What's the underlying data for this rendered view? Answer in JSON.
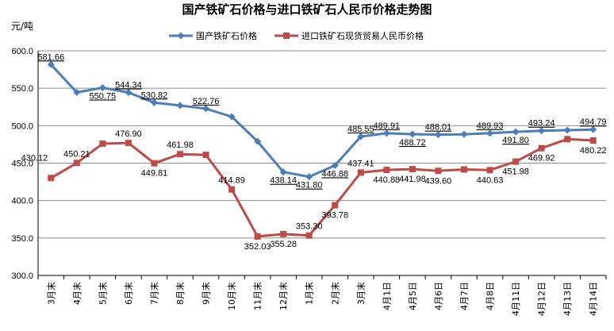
{
  "chart_data": {
    "type": "line",
    "title": "国产铁矿石价格与进口铁矿石人民币价格走势图",
    "ylabel": "元/吨",
    "ylim": [
      300,
      600
    ],
    "yticks": [
      "300.0",
      "350.0",
      "400.0",
      "450.0",
      "500.0",
      "550.0",
      "600.0"
    ],
    "categories": [
      "3月末",
      "4月末",
      "5月末",
      "6月末",
      "7月末",
      "8月末",
      "9月末",
      "10月末",
      "11月末",
      "12月末",
      "1月末",
      "2月末",
      "3月末",
      "4月1日",
      "4月5日",
      "4月6日",
      "4月7日",
      "4月8日",
      "4月11日",
      "4月12日",
      "4月13日",
      "4月14日"
    ],
    "grid": true,
    "legend_position": "top",
    "series": [
      {
        "name": "国产铁矿石价格",
        "color": "#4a7ebb",
        "marker": "diamond",
        "values": [
          581.66,
          544.5,
          550.75,
          544.34,
          530.82,
          527.0,
          522.76,
          512.0,
          479.0,
          438.14,
          431.8,
          446.88,
          485.55,
          489.91,
          488.72,
          488.01,
          488.5,
          489.93,
          491.8,
          493.24,
          494.0,
          494.79
        ],
        "labels": [
          "581.66",
          "",
          "550.75",
          "544.34",
          "530.82",
          "",
          "522.76",
          "",
          "",
          "438.14",
          "431.80",
          "446.88",
          "485.55",
          "489.91",
          "488.72",
          "488.01",
          "",
          "489.93",
          "491.80",
          "493.24",
          "",
          "494.79"
        ]
      },
      {
        "name": "进口铁矿石现货贸易人民币价格",
        "color": "#be4b48",
        "marker": "square",
        "values": [
          430.12,
          450.21,
          476.0,
          476.9,
          449.81,
          461.98,
          461.0,
          414.89,
          352.03,
          355.28,
          353.3,
          393.78,
          437.41,
          440.88,
          441.98,
          439.6,
          441.5,
          440.63,
          451.98,
          469.92,
          482.0,
          480.22
        ],
        "labels": [
          "430.12",
          "450.21",
          "",
          "476.90",
          "449.81",
          "461.98",
          "",
          "414.89",
          "352.03",
          "355.28",
          "353.30",
          "393.78",
          "437.41",
          "440.88",
          "441.98",
          "439.60",
          "",
          "440.63",
          "451.98",
          "469.92",
          "",
          "480.22"
        ]
      }
    ]
  }
}
